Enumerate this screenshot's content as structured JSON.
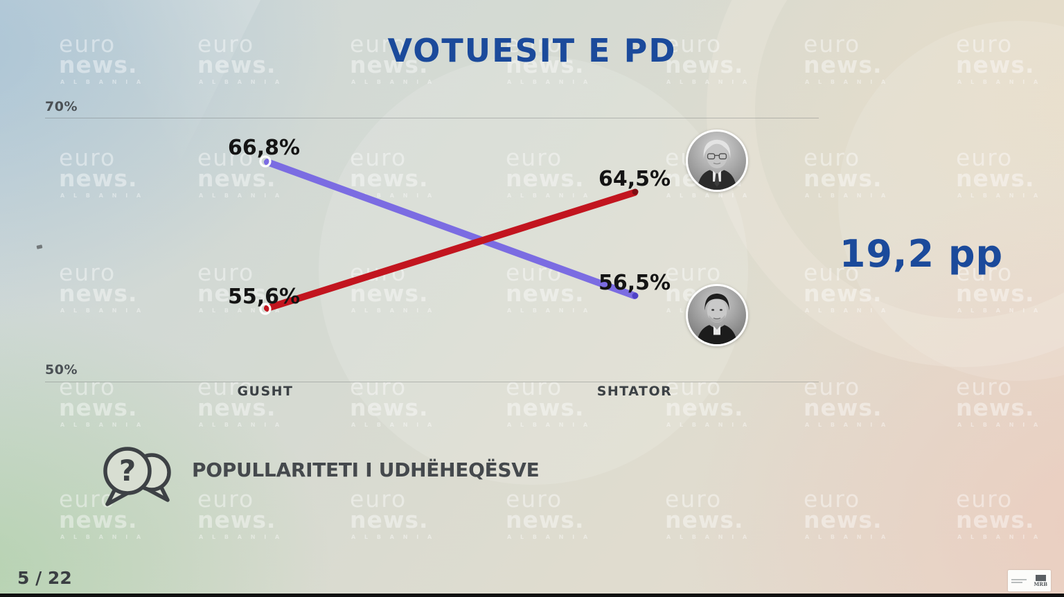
{
  "chart_data": {
    "type": "line",
    "title": "VOTUESIT E PD",
    "categories": [
      "GUSHT",
      "SHTATOR"
    ],
    "series": [
      {
        "name": "purple-line-leader",
        "color": "#7b6ce2",
        "point_color_dark": "#4f43c6",
        "values": [
          66.8,
          56.5
        ],
        "labels": [
          "66,8%",
          "56,5%"
        ]
      },
      {
        "name": "red-line-leader",
        "color": "#c2151f",
        "point_color_dark": "#7e0d13",
        "values": [
          55.6,
          64.5
        ],
        "labels": [
          "55,6%",
          "64,5%"
        ]
      }
    ],
    "yticks": [
      "70%",
      "50%"
    ],
    "ylim": [
      50,
      70
    ],
    "grid": true,
    "legend_position": "none",
    "annotation": "19,2 pp"
  },
  "page": {
    "caption": "POPULLARITETI I UDHËHEQËSVE",
    "page_counter": "5 / 22",
    "question_mark": "?",
    "source_badge": "MRB",
    "watermark": {
      "line1": "euro",
      "line2": "news.",
      "line3": "A L B A N I A"
    }
  },
  "colors": {
    "title_blue": "#1b4a9b",
    "annotation_blue": "#1b4a9b",
    "line_purple": "#7b6ce2",
    "line_purple_dark": "#4f43c6",
    "line_red": "#c2151f",
    "line_red_dark": "#7e0d13",
    "value_label_black": "#141414",
    "axis_gray": "#4b5155"
  }
}
